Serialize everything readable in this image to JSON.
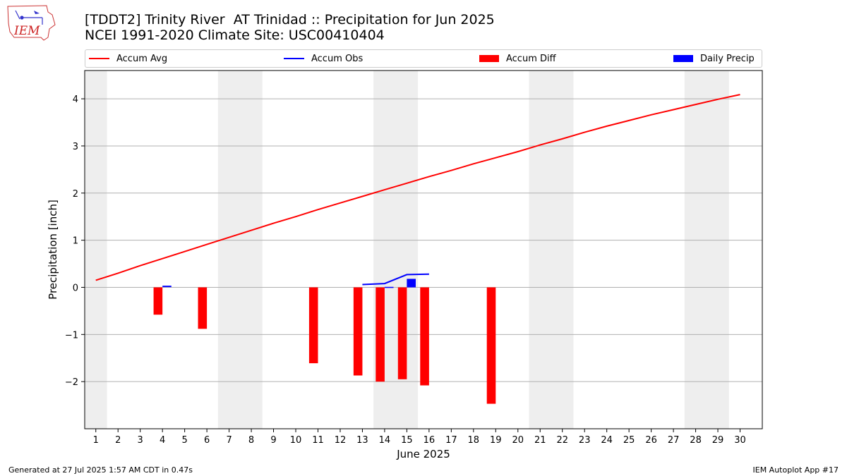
{
  "logo": {
    "text": "IEM"
  },
  "title": {
    "line1": "[TDDT2] Trinity River  AT Trinidad :: Precipitation for Jun 2025",
    "line2": "NCEI 1991-2020 Climate Site: USC00410404"
  },
  "legend": {
    "items": [
      {
        "label": "Accum Avg",
        "kind": "line",
        "color": "#ff0000"
      },
      {
        "label": "Accum Obs",
        "kind": "line",
        "color": "#0000ff"
      },
      {
        "label": "Accum Diff",
        "kind": "box",
        "color": "#ff0000"
      },
      {
        "label": "Daily Precip",
        "kind": "box",
        "color": "#0000ff"
      }
    ]
  },
  "chart_data": {
    "type": "bar",
    "xlabel": "June 2025",
    "ylabel": "Precipitation [inch]",
    "xlim": [
      0.5,
      31
    ],
    "ylim": [
      -3.0,
      4.6
    ],
    "y_ticks": [
      -2,
      -1,
      0,
      1,
      2,
      3,
      4
    ],
    "y_tick_labels": [
      "−2",
      "−1",
      "0",
      "1",
      "2",
      "3",
      "4"
    ],
    "x_ticks": [
      1,
      2,
      3,
      4,
      5,
      6,
      7,
      8,
      9,
      10,
      11,
      12,
      13,
      14,
      15,
      16,
      17,
      18,
      19,
      20,
      21,
      22,
      23,
      24,
      25,
      26,
      27,
      28,
      29,
      30
    ],
    "grid": "horizontal",
    "weekend_shading": [
      [
        0.5,
        1.5
      ],
      [
        6.5,
        8.5
      ],
      [
        13.5,
        15.5
      ],
      [
        20.5,
        22.5
      ],
      [
        27.5,
        29.5
      ]
    ],
    "series": [
      {
        "name": "Accum Avg",
        "type": "line",
        "color": "#ff0000",
        "x": [
          1,
          2,
          3,
          4,
          5,
          6,
          7,
          8,
          9,
          10,
          11,
          12,
          13,
          14,
          15,
          16,
          17,
          18,
          19,
          20,
          21,
          22,
          23,
          24,
          25,
          26,
          27,
          28,
          29,
          30
        ],
        "values": [
          0.15,
          0.3,
          0.46,
          0.61,
          0.76,
          0.91,
          1.06,
          1.21,
          1.36,
          1.5,
          1.65,
          1.79,
          1.93,
          2.07,
          2.21,
          2.35,
          2.48,
          2.62,
          2.75,
          2.88,
          3.02,
          3.15,
          3.29,
          3.42,
          3.54,
          3.66,
          3.77,
          3.88,
          3.99,
          4.09
        ]
      },
      {
        "name": "Accum Obs",
        "type": "line",
        "color": "#0000ff",
        "x": [
          4,
          4.4,
          null,
          13,
          14,
          15,
          16
        ],
        "values": [
          0.02,
          0.02,
          null,
          0.06,
          0.08,
          0.27,
          0.28
        ]
      },
      {
        "name": "Accum Diff",
        "type": "bar",
        "color": "#ff0000",
        "x": [
          4,
          6,
          11,
          13,
          14,
          15,
          16,
          19
        ],
        "values": [
          -0.58,
          -0.88,
          -1.61,
          -1.87,
          -2.0,
          -1.95,
          -2.08,
          -2.47
        ]
      },
      {
        "name": "Daily Precip",
        "type": "bar",
        "color": "#0000ff",
        "x": [
          14,
          15
        ],
        "values": [
          0.01,
          0.18
        ]
      }
    ]
  },
  "footer": {
    "left": "Generated at 27 Jul 2025 1:57 AM CDT in 0.47s",
    "right": "IEM Autoplot App #17"
  }
}
